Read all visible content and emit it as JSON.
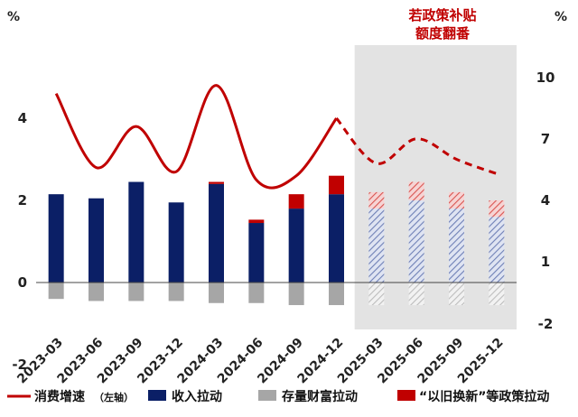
{
  "chart_data": {
    "type": "bar",
    "categories": [
      "2023-03",
      "2023-06",
      "2023-09",
      "2023-12",
      "2024-03",
      "2024-06",
      "2024-09",
      "2024-12",
      "2025-03",
      "2025-06",
      "2025-09",
      "2025-12"
    ],
    "projected_from_index": 8,
    "series": [
      {
        "name": "收入拉动",
        "axis": "left",
        "kind": "bar",
        "values": [
          2.15,
          2.05,
          2.45,
          1.95,
          2.4,
          1.45,
          1.8,
          2.15,
          1.8,
          2.0,
          1.8,
          1.6
        ]
      },
      {
        "name": "存量财富拉动",
        "axis": "left",
        "kind": "bar",
        "values": [
          -0.4,
          -0.45,
          -0.45,
          -0.45,
          -0.5,
          -0.5,
          -0.55,
          -0.55,
          -0.55,
          -0.55,
          -0.55,
          -0.55
        ]
      },
      {
        "name": "“以旧换新”等政策拉动",
        "axis": "left",
        "kind": "bar",
        "values": [
          0,
          0,
          0,
          0,
          0.05,
          0.08,
          0.35,
          0.45,
          0.4,
          0.45,
          0.4,
          0.4
        ]
      },
      {
        "name": "消费增速",
        "axis": "left",
        "kind": "line",
        "values": [
          4.6,
          2.8,
          3.8,
          2.7,
          4.8,
          2.5,
          2.6,
          4.0,
          2.9,
          3.5,
          3.0,
          2.65
        ]
      }
    ],
    "ylim_left": [
      -2,
      5
    ],
    "ylim_right": [
      -2,
      12.5
    ],
    "yticks_left": [
      "4",
      "2",
      "0",
      "-2"
    ],
    "yticks_right": [
      "10",
      "7",
      "4",
      "1",
      "-2"
    ],
    "left_unit": "%",
    "right_unit": "%",
    "legend": {
      "position": "bottom",
      "items": [
        {
          "label": "消费增速",
          "note": "（左轴）",
          "symbol": "line",
          "color": "#c00000"
        },
        {
          "label": "收入拉动",
          "note": "",
          "symbol": "box",
          "color": "#0b1f66"
        },
        {
          "label": "存量财富拉动",
          "note": "",
          "symbol": "box",
          "color": "#a6a6a6"
        },
        {
          "label": "“以旧换新”等政策拉动",
          "note": "",
          "symbol": "box",
          "color": "#c00000"
        }
      ]
    },
    "annotation": {
      "lines": [
        "若政策补贴",
        "额度翻番"
      ],
      "color": "#c00000"
    },
    "colors": {
      "income": "#0b1f66",
      "wealth": "#a6a6a6",
      "policy": "#c00000",
      "line": "#c00000",
      "shade": "#d9d9d9",
      "hatch_blue": "#7f8fbf",
      "hatch_gray": "#c8c8c8",
      "hatch_red": "#e06666"
    }
  }
}
